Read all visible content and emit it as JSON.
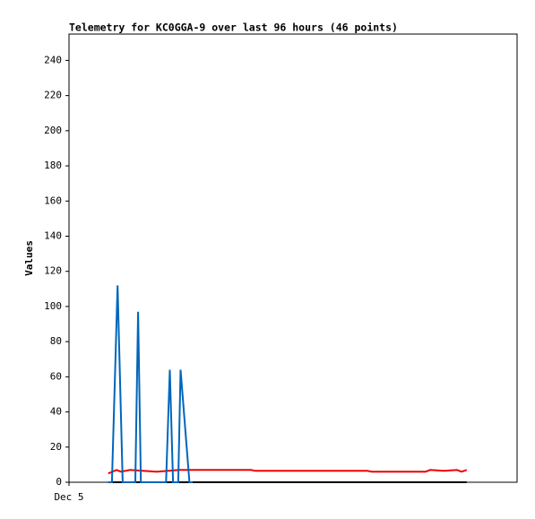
{
  "chart_data": {
    "type": "line",
    "title": "Telemetry for KC0GGA-9 over last 96 hours (46 points)",
    "y_label": "Values",
    "xlim": [
      0,
      96
    ],
    "xticks": [
      {
        "value": 0,
        "label": "Dec 5"
      }
    ],
    "ylim": [
      0,
      255
    ],
    "yticks": [
      0,
      20,
      40,
      60,
      80,
      100,
      120,
      140,
      160,
      180,
      200,
      220,
      240
    ],
    "grid": false,
    "series": [
      {
        "color": "#000000",
        "x": [
          8.4,
          85.2
        ],
        "values": [
          0,
          0
        ]
      },
      {
        "color": "#ee0000",
        "x": [
          8.4,
          10.2,
          11.1,
          13.1,
          15.9,
          18.8,
          23.6,
          39.0,
          39.9,
          63.9,
          64.9,
          76.4,
          77.4,
          80.3,
          83.1,
          84.1,
          85.2
        ],
        "values": [
          5,
          7,
          6,
          7,
          6.5,
          6,
          7,
          7,
          6.5,
          6.5,
          6,
          6,
          7,
          6.5,
          7,
          6,
          7
        ]
      },
      {
        "color": "#0066bb",
        "x": [
          8.4,
          9.2,
          10.4,
          11.5,
          14.2,
          14.8,
          15.4,
          20.8,
          21.6,
          22.3,
          23.4,
          23.9,
          25.8,
          26.5
        ],
        "values": [
          0,
          0,
          112,
          0,
          0,
          97,
          0,
          0,
          64,
          0,
          0,
          64,
          0,
          0
        ]
      }
    ]
  }
}
